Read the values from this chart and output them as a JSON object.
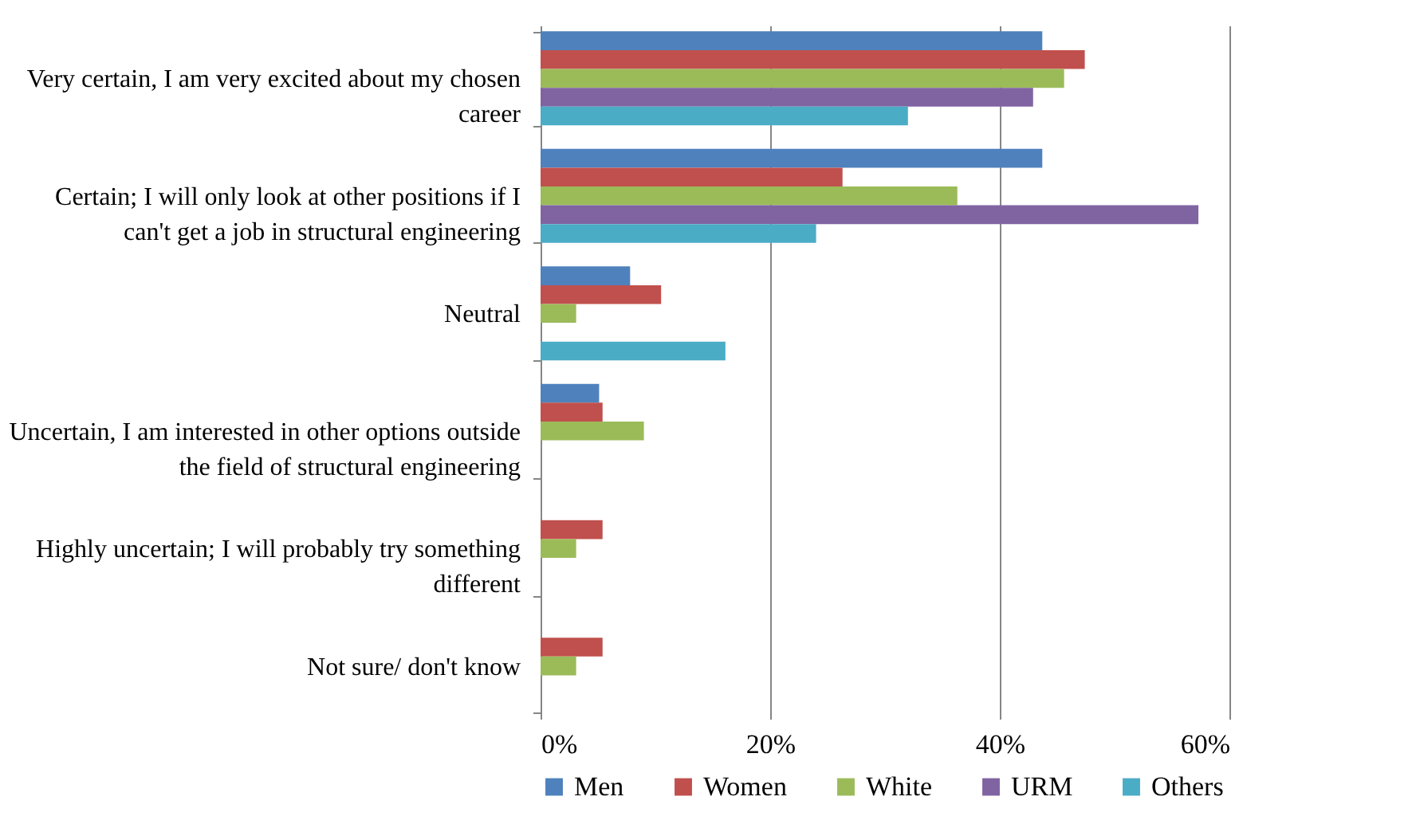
{
  "chart_data": {
    "type": "bar",
    "orientation": "horizontal",
    "categories": [
      "Very certain, I am very excited about my chosen career",
      "Certain; I will only look at other positions if I can't get a job in structural engineering",
      "Neutral",
      "Uncertain, I am interested in other options outside the field of structural engineering",
      "Highly uncertain; I will probably try something different",
      "Not sure/ don't know"
    ],
    "series": [
      {
        "name": "Men",
        "color": "#4f81bd",
        "values": [
          43.7,
          43.7,
          7.8,
          5.1,
          null,
          null
        ]
      },
      {
        "name": "Women",
        "color": "#c0504d",
        "values": [
          47.4,
          26.3,
          10.5,
          5.4,
          5.4,
          5.4
        ]
      },
      {
        "name": "White",
        "color": "#9bbb59",
        "values": [
          45.6,
          36.3,
          3.1,
          9.0,
          3.1,
          3.1
        ]
      },
      {
        "name": "URM",
        "color": "#8064a2",
        "values": [
          42.9,
          57.3,
          null,
          null,
          null,
          null
        ]
      },
      {
        "name": "Others",
        "color": "#4bacc6",
        "values": [
          32.0,
          24.0,
          16.1,
          null,
          null,
          null
        ]
      }
    ],
    "xlim": [
      0,
      60
    ],
    "xticks": [
      {
        "value": 0,
        "label": "0%"
      },
      {
        "value": 20,
        "label": "20%"
      },
      {
        "value": 40,
        "label": "40%"
      },
      {
        "value": 60,
        "label": "60%"
      }
    ],
    "grid": "x",
    "legend": "bottom"
  }
}
